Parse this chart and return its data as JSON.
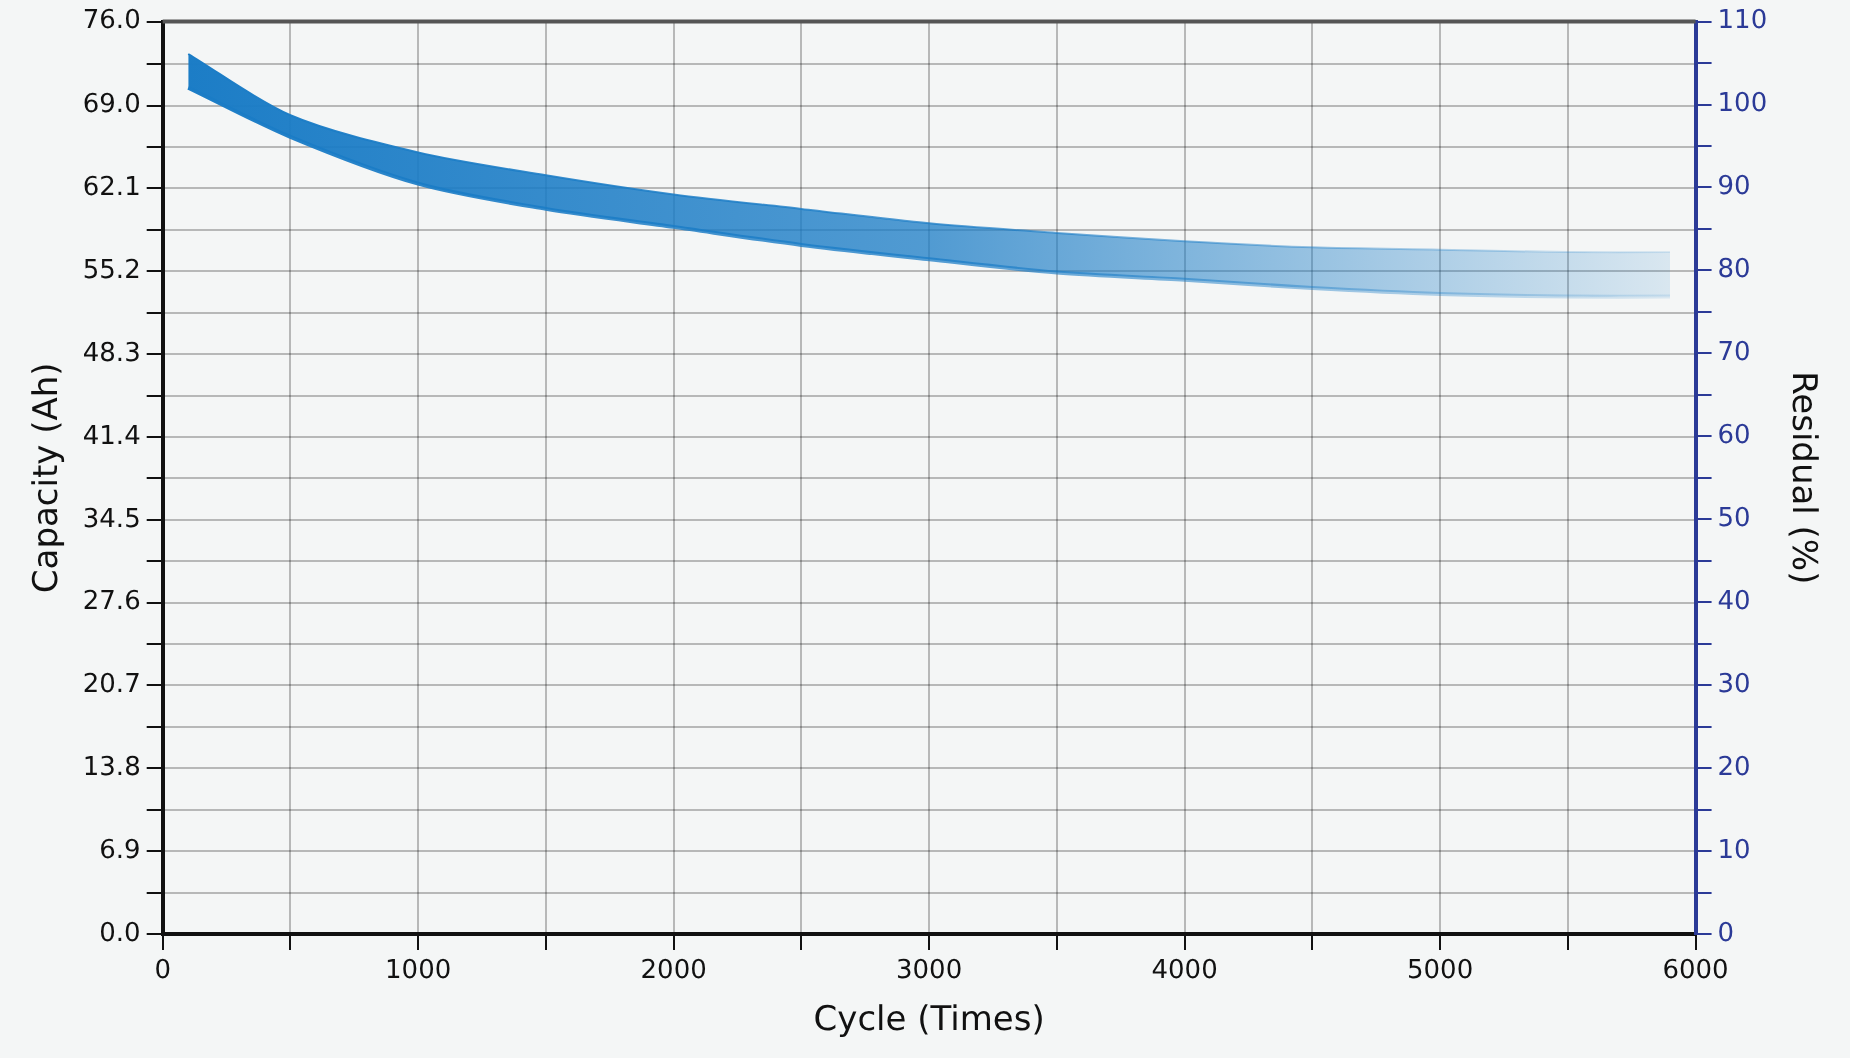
{
  "chart_data": {
    "type": "area",
    "xlabel": "Cycle (Times)",
    "ylabel": "Capacity (Ah)",
    "y2label": "Residual (%)",
    "series": [
      {
        "type": "line",
        "color": "#1a7cc6",
        "x": [
          100,
          500,
          1000,
          1500,
          2000,
          2500,
          3000,
          3500,
          4000,
          4500,
          5000,
          5500,
          5900
        ],
        "values": [
          70.5,
          66.4,
          62.5,
          60.4,
          58.9,
          57.4,
          56.2,
          55.1,
          54.5,
          53.8,
          53.3,
          53.1,
          53.1
        ]
      },
      {
        "type": "area",
        "color": "#1a7cc6",
        "x": [
          100,
          500,
          1000,
          1500,
          2000,
          2500,
          3000,
          3500,
          4000,
          4500,
          5000,
          5500,
          5900
        ],
        "values": [
          73.3,
          68.2,
          65.1,
          63.2,
          61.6,
          60.4,
          59.2,
          58.4,
          57.7,
          57.2,
          57.0,
          56.8,
          56.8
        ]
      }
    ],
    "xlim": [
      0,
      6000
    ],
    "xticks": [
      0,
      {
        "value": 500,
        "label": null
      },
      1000,
      {
        "value": 1500,
        "label": null
      },
      2000,
      {
        "value": 2500,
        "label": null
      },
      3000,
      {
        "value": 3500,
        "label": null
      },
      4000,
      {
        "value": 4500,
        "label": null
      },
      5000,
      {
        "value": 5500,
        "label": null
      },
      6000
    ],
    "ylim": [
      0,
      76
    ],
    "yticks": [
      {
        "value": 0,
        "label": "0.0"
      },
      {
        "value": 3.45,
        "label": null
      },
      6.9,
      {
        "value": 10.35,
        "label": null
      },
      13.8,
      {
        "value": 17.25,
        "label": null
      },
      20.7,
      {
        "value": 24.15,
        "label": null
      },
      27.6,
      {
        "value": 31.05,
        "label": null
      },
      34.5,
      {
        "value": 37.95,
        "label": null
      },
      41.4,
      {
        "value": 44.85,
        "label": null
      },
      48.3,
      {
        "value": 51.75,
        "label": null
      },
      55.2,
      {
        "value": 58.65,
        "label": null
      },
      62.1,
      {
        "value": 65.55,
        "label": null
      },
      {
        "value": 69,
        "label": "69.0"
      },
      {
        "value": 72.5,
        "label": null
      },
      {
        "value": 76,
        "label": "76.0"
      }
    ],
    "y2lim": [
      0,
      110
    ],
    "y2ticks": [
      0,
      {
        "value": 5,
        "label": null
      },
      10,
      {
        "value": 15,
        "label": null
      },
      20,
      {
        "value": 25,
        "label": null
      },
      30,
      {
        "value": 35,
        "label": null
      },
      40,
      {
        "value": 45,
        "label": null
      },
      50,
      {
        "value": 55,
        "label": null
      },
      60,
      {
        "value": 65,
        "label": null
      },
      70,
      {
        "value": 75,
        "label": null
      },
      80,
      {
        "value": 85,
        "label": null
      },
      90,
      {
        "value": 95,
        "label": null
      },
      100,
      {
        "value": 105,
        "label": null
      },
      110
    ],
    "grid": true,
    "legend": false
  }
}
